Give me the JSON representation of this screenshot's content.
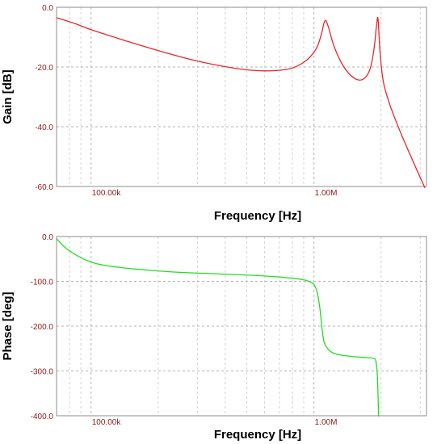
{
  "chart_data": [
    {
      "type": "line",
      "ylabel": "Gain [dB]",
      "xlabel": "Frequency [Hz]",
      "x_scale": "log",
      "xlim": [
        70000,
        3200000
      ],
      "ylim": [
        -60,
        0
      ],
      "y_ticks": [
        "0.0",
        "-20.0",
        "-40.0",
        "-60.0"
      ],
      "y_tick_values": [
        0,
        -20,
        -40,
        -60
      ],
      "x_ticks": [
        "100.00k",
        "1.00M"
      ],
      "x_tick_values": [
        100000,
        1000000
      ],
      "grid": true,
      "series": [
        {
          "color": "#e8262a",
          "x": [
            70000,
            85000,
            100000,
            140000,
            200000,
            300000,
            450000,
            600000,
            750000,
            850000,
            950000,
            1030000,
            1080000,
            1120000,
            1160000,
            1230000,
            1350000,
            1500000,
            1650000,
            1780000,
            1860000,
            1910000,
            1940000,
            1980000,
            2050000,
            2200000,
            2450000,
            2800000,
            3150000
          ],
          "values": [
            -3.5,
            -5.5,
            -7.5,
            -11,
            -14.5,
            -18,
            -20.5,
            -21.3,
            -20.8,
            -19.5,
            -17,
            -13.5,
            -9,
            -4.5,
            -6.5,
            -13,
            -19.5,
            -23.5,
            -24.2,
            -21,
            -14,
            -6,
            -4,
            -15,
            -25,
            -33,
            -42,
            -52,
            -60.5
          ]
        }
      ]
    },
    {
      "type": "line",
      "ylabel": "Phase [deg]",
      "xlabel": "Frequency [Hz]",
      "x_scale": "log",
      "xlim": [
        70000,
        3200000
      ],
      "ylim": [
        -400,
        0
      ],
      "y_ticks": [
        "0.0",
        "-100.0",
        "-200.0",
        "-300.0",
        "-400.0"
      ],
      "y_tick_values": [
        0,
        -100,
        -200,
        -300,
        -400
      ],
      "x_ticks": [
        "100.00k",
        "1.00M"
      ],
      "x_tick_values": [
        100000,
        1000000
      ],
      "grid": true,
      "series": [
        {
          "color": "#22dd22",
          "x": [
            70000,
            80000,
            100000,
            130000,
            180000,
            250000,
            400000,
            600000,
            800000,
            950000,
            1020000,
            1060000,
            1090000,
            1110000,
            1140000,
            1200000,
            1300000,
            1500000,
            1700000,
            1850000,
            1900000,
            1930000,
            1950000
          ],
          "values": [
            -5,
            -32,
            -57,
            -68,
            -75,
            -80,
            -84,
            -88,
            -93,
            -100,
            -115,
            -155,
            -210,
            -235,
            -247,
            -258,
            -264,
            -268,
            -270,
            -272,
            -280,
            -320,
            -402
          ]
        }
      ]
    }
  ]
}
